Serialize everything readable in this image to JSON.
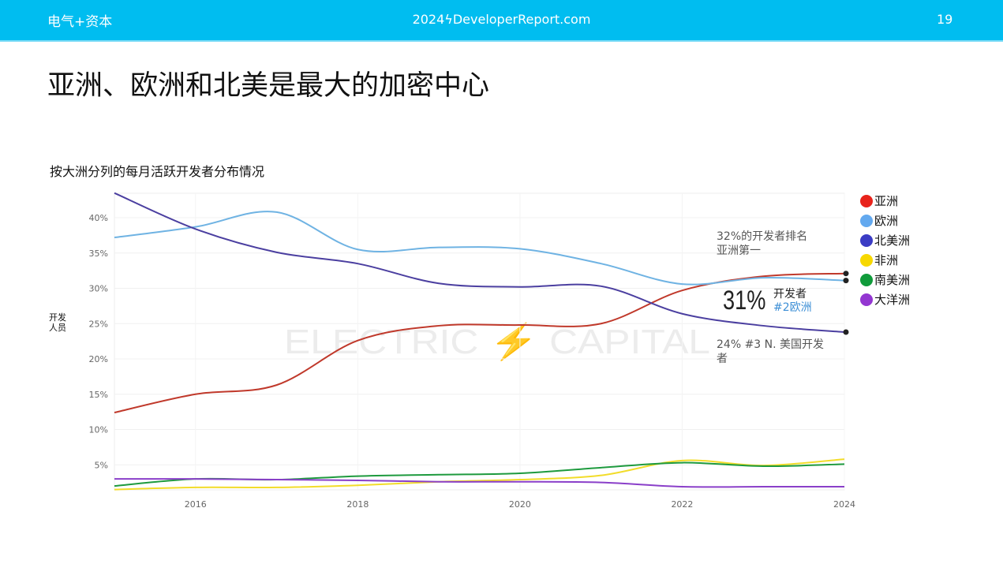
{
  "header": {
    "brand": "电气+资本",
    "site": "2024ϟDeveloperReport.com",
    "page": "19"
  },
  "title": "亚洲、欧洲和北美是最大的加密中心",
  "watermark": "ELECTRIC ⚡ CAPITAL",
  "chart_data": {
    "type": "line",
    "title": "按大洲分列的每月活跃开发者分布情况",
    "ylabel": "开发人员",
    "xlabel": "",
    "x": [
      2015,
      2016,
      2017,
      2018,
      2019,
      2020,
      2021,
      2022,
      2023,
      2024
    ],
    "xticks": [
      "2016",
      "2018",
      "2020",
      "2022",
      "2024"
    ],
    "yticks": [
      "5%",
      "10%",
      "15%",
      "20%",
      "25%",
      "30%",
      "35%",
      "40%"
    ],
    "ylim": [
      1.5,
      44
    ],
    "xlim": [
      2015,
      2024
    ],
    "grid": true,
    "legend_placement": "right",
    "series": [
      {
        "name": "亚洲",
        "color": "#c0392b",
        "legend_color": "#e8231b",
        "values": [
          12.4,
          15,
          16.3,
          22.6,
          24.7,
          24.8,
          25,
          29.7,
          31.7,
          32.1
        ]
      },
      {
        "name": "欧洲",
        "color": "#6fb3e3",
        "legend_color": "#63a9ef",
        "values": [
          37.2,
          38.7,
          40.8,
          35.5,
          35.8,
          35.6,
          33.5,
          30.6,
          31.5,
          31.1
        ]
      },
      {
        "name": "北美洲",
        "color": "#4b3fa0",
        "legend_color": "#3b3cc4",
        "values": [
          43.5,
          38.4,
          35.1,
          33.5,
          30.7,
          30.2,
          30.3,
          26.4,
          24.7,
          23.8
        ]
      },
      {
        "name": "非洲",
        "color": "#f2dc2a",
        "legend_color": "#f7d800",
        "values": [
          1.5,
          1.8,
          1.8,
          2.1,
          2.6,
          2.9,
          3.5,
          5.6,
          4.9,
          5.8
        ]
      },
      {
        "name": "南美洲",
        "color": "#1e9a3e",
        "legend_color": "#109b3b",
        "values": [
          2,
          3,
          2.9,
          3.4,
          3.6,
          3.8,
          4.6,
          5.3,
          4.8,
          5.1
        ]
      },
      {
        "name": "大洋洲",
        "color": "#8a3fc9",
        "legend_color": "#9336d1",
        "values": [
          3,
          3,
          2.9,
          2.8,
          2.6,
          2.6,
          2.5,
          1.9,
          1.9,
          1.9
        ]
      }
    ],
    "annotations": {
      "asia": "32%的开发者排名亚洲第一",
      "europe_big": "31%",
      "europe_label": "开发者",
      "europe_rank": "#2欧洲",
      "na": "24% #3 N. 美国开发者"
    }
  }
}
